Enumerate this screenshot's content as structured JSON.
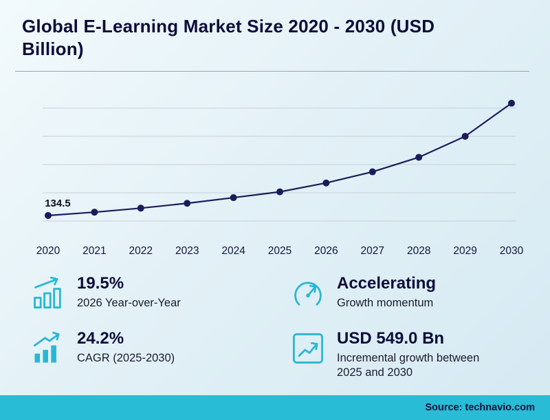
{
  "title": "Global E-Learning Market Size 2020 - 2030 (USD Billion)",
  "chart_data": {
    "type": "line",
    "title": "Global E-Learning Market Size 2020 - 2030 (USD Billion)",
    "x": [
      "2020",
      "2021",
      "2022",
      "2023",
      "2024",
      "2025",
      "2026",
      "2027",
      "2028",
      "2029",
      "2030"
    ],
    "values": [
      134.5,
      155,
      180,
      210,
      245,
      281,
      336,
      405,
      495,
      625,
      830
    ],
    "labeled_points": [
      {
        "x": "2020",
        "label": "134.5"
      }
    ],
    "xlabel": "",
    "ylabel": "",
    "ylim": [
      0,
      900
    ],
    "grid": true,
    "gridline_values": [
      100,
      275,
      450,
      625,
      800
    ],
    "legend": "none",
    "line_color": "#1b1b5c",
    "point_color": "#1b1b5c",
    "gridline_color": "#c7ced6",
    "tick_label_color": "#14143f",
    "data_label_color": "#0d0d22"
  },
  "stats": [
    {
      "value": "19.5%",
      "label": "2026 Year-over-Year",
      "icon": "growth-bars-icon"
    },
    {
      "value": "Accelerating",
      "label": "Growth momentum",
      "icon": "gauge-icon"
    },
    {
      "value": "24.2%",
      "label": "CAGR (2025-2030)",
      "icon": "cagr-bars-icon"
    },
    {
      "value": "USD 549.0 Bn",
      "label": "Incremental growth between 2025 and 2030",
      "icon": "chart-box-icon"
    }
  ],
  "footer": {
    "source": "Source: technavio.com"
  },
  "colors": {
    "accent": "#29b7d3",
    "navy": "#0d0d3a",
    "line": "#1b1b5c",
    "footer_bg": "#29bcd6",
    "background_start": "#f2fafc",
    "background_end": "#d5e9f2"
  }
}
